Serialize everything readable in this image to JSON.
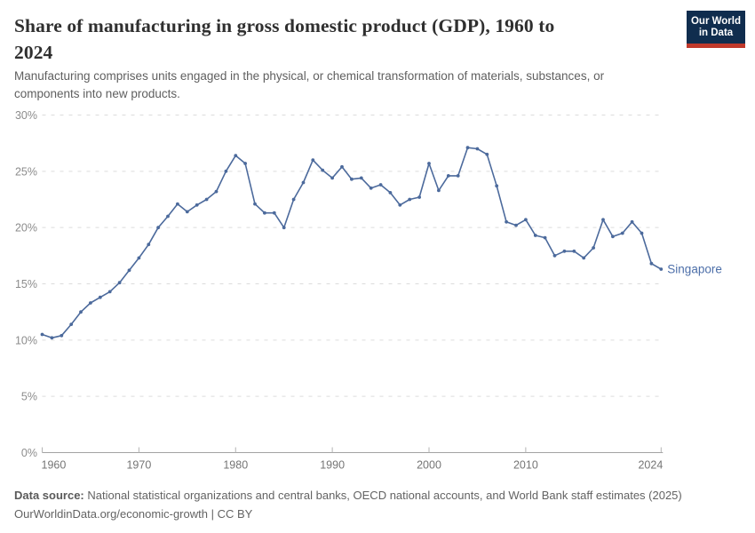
{
  "header": {
    "title": "Share of manufacturing in gross domestic product (GDP), 1960 to\n2024",
    "subtitle": "Manufacturing comprises units engaged in the physical, or chemical transformation of materials, substances, or\ncomponents into new products."
  },
  "logo": {
    "line1": "Our World",
    "line2": "in Data",
    "bg_color": "#102d4e",
    "bar_color": "#c0392b"
  },
  "chart_data": {
    "type": "line",
    "title": "Share of manufacturing in gross domestic product (GDP), 1960 to 2024",
    "xlabel": "",
    "ylabel": "",
    "xlim": [
      1960,
      2024
    ],
    "ylim": [
      0,
      30
    ],
    "grid": "horizontal dashed gridlines",
    "legend": "end-of-line entity label",
    "x_ticks": [
      1960,
      1970,
      1980,
      1990,
      2000,
      2010,
      2024
    ],
    "y_ticks": [
      0,
      5,
      10,
      15,
      20,
      25,
      30
    ],
    "y_suffix": "%",
    "x": [
      1960,
      1961,
      1962,
      1963,
      1964,
      1965,
      1966,
      1967,
      1968,
      1969,
      1970,
      1971,
      1972,
      1973,
      1974,
      1975,
      1976,
      1977,
      1978,
      1979,
      1980,
      1981,
      1982,
      1983,
      1984,
      1985,
      1986,
      1987,
      1988,
      1989,
      1990,
      1991,
      1992,
      1993,
      1994,
      1995,
      1996,
      1997,
      1998,
      1999,
      2000,
      2001,
      2002,
      2003,
      2004,
      2005,
      2006,
      2007,
      2008,
      2009,
      2010,
      2011,
      2012,
      2013,
      2014,
      2015,
      2016,
      2017,
      2018,
      2019,
      2020,
      2021,
      2022,
      2023,
      2024
    ],
    "series": [
      {
        "name": "Singapore",
        "color": "#4C6A9C",
        "values": [
          10.5,
          10.2,
          10.4,
          11.4,
          12.5,
          13.3,
          13.8,
          14.3,
          15.1,
          16.2,
          17.3,
          18.5,
          20.0,
          21.0,
          22.1,
          21.4,
          22.0,
          22.5,
          23.2,
          25.0,
          26.4,
          25.7,
          22.1,
          21.3,
          21.3,
          20.0,
          22.5,
          24.0,
          26.0,
          25.1,
          24.4,
          25.4,
          24.3,
          24.4,
          23.5,
          23.8,
          23.1,
          22.0,
          22.5,
          22.7,
          25.7,
          23.3,
          24.6,
          24.6,
          27.1,
          27.0,
          26.5,
          23.7,
          20.5,
          20.2,
          20.7,
          19.3,
          19.1,
          17.5,
          17.9,
          17.9,
          17.3,
          18.2,
          20.7,
          19.2,
          19.5,
          20.5,
          19.5,
          16.8,
          16.3
        ]
      }
    ],
    "end_label": "Singapore",
    "axis_color": "#a3a3a3",
    "gridline_color": "#dcdcdc",
    "y_label_color": "#8c8c8c",
    "x_label_color": "#757575"
  },
  "footer": {
    "source_label": "Data source:",
    "source_text": " National statistical organizations and central banks, OECD national accounts, and World Bank staff estimates (2025)",
    "url_label": "OurWorldinData.org/economic-growth",
    "separator": " | ",
    "license_label": "CC BY"
  }
}
